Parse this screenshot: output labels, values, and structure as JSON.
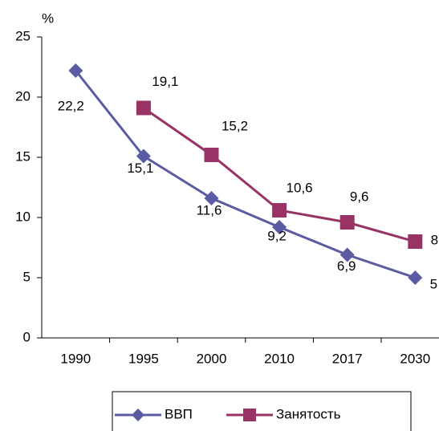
{
  "chart_data": {
    "type": "line",
    "y_label": "%",
    "categories": [
      "1990",
      "1995",
      "2000",
      "2010",
      "2017",
      "2030"
    ],
    "series": [
      {
        "name": "ВВП",
        "color": "#5b5ba3",
        "marker": "diamond",
        "values": [
          22.2,
          15.1,
          11.6,
          9.2,
          6.9,
          5
        ],
        "value_labels": [
          "22,2",
          "15,1",
          "11,6",
          "9,2",
          "6,9",
          "5"
        ]
      },
      {
        "name": "Занятость",
        "color": "#993366",
        "marker": "square",
        "values": [
          null,
          19.1,
          15.2,
          10.6,
          9.6,
          8
        ],
        "value_labels": [
          null,
          "19,1",
          "15,2",
          "10,6",
          "9,6",
          "8"
        ]
      }
    ],
    "ylim": [
      0,
      25
    ],
    "yticks": [
      0,
      5,
      10,
      15,
      20,
      25
    ],
    "grid": false,
    "legend": "bottom"
  }
}
